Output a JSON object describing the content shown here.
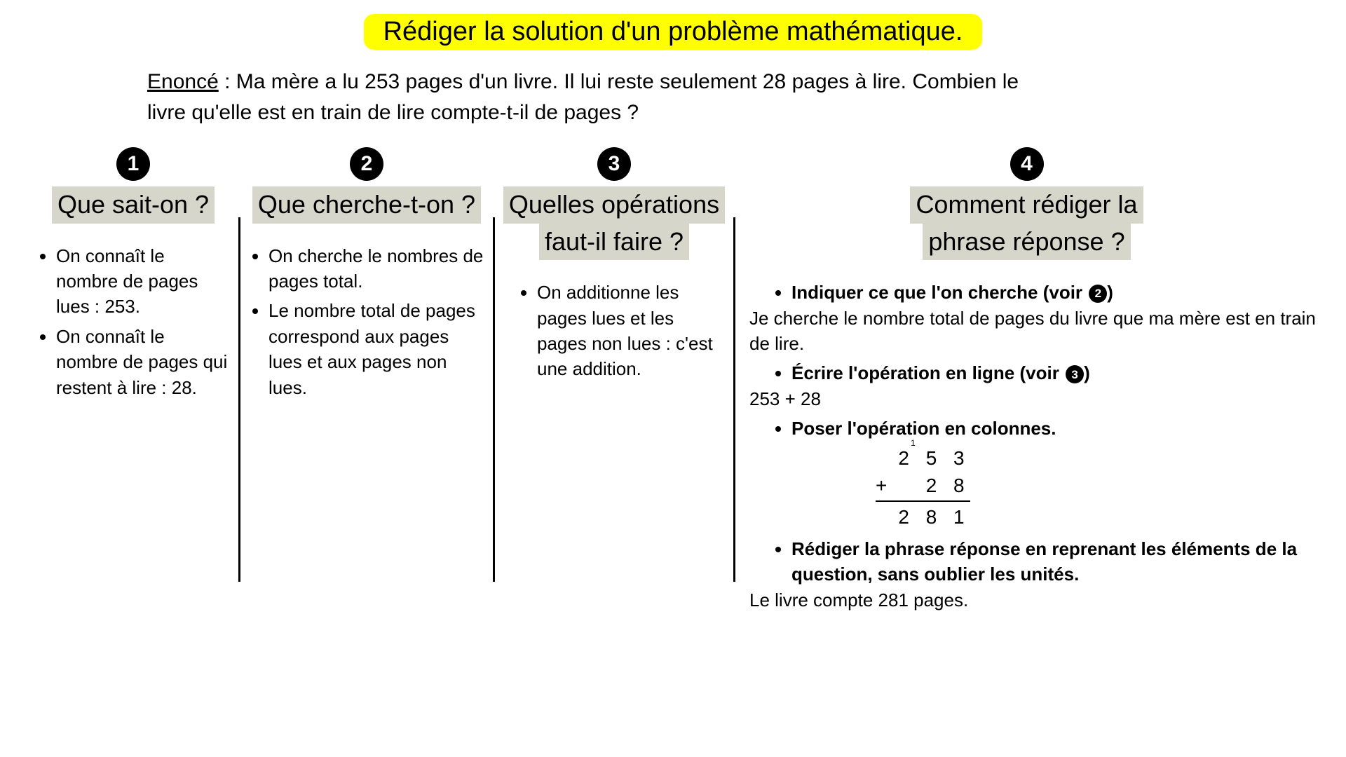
{
  "title": "Rédiger la solution d'un problème mathématique.",
  "enonce_label": "Enoncé",
  "enonce_text": " : Ma mère a lu 253 pages d'un livre. Il lui reste seulement 28 pages à lire. Combien le livre qu'elle est en train de lire compte-t-il de pages ?",
  "colors": {
    "highlight": "#ffff00",
    "col_title_bg": "#d6d6cb",
    "text": "#000000",
    "background": "#ffffff"
  },
  "columns": [
    {
      "num": "1",
      "title": "Que sait-on ?",
      "items": [
        "On connaît le nombre de pages lues : 253.",
        "On connaît le nombre de pages qui restent à lire : 28."
      ]
    },
    {
      "num": "2",
      "title": "Que cherche-t-on ?",
      "items": [
        "On cherche le nombres de pages total.",
        "Le nombre total de pages correspond aux pages lues et aux pages non lues."
      ]
    },
    {
      "num": "3",
      "title_line1": "Quelles opérations",
      "title_line2": "faut-il faire ?",
      "items": [
        "On additionne les pages lues et les pages non lues : c'est une addition."
      ]
    },
    {
      "num": "4",
      "title_line1": "Comment rédiger la",
      "title_line2": "phrase réponse ?",
      "steps": {
        "a_label": "Indiquer ce que l'on cherche (voir",
        "a_ref": "2",
        "a_close": ")",
        "a_text": "Je cherche le nombre total de pages du livre que ma mère est en train de lire.",
        "b_label": "Écrire l'opération en ligne (voir",
        "b_ref": "3",
        "b_close": ")",
        "b_text": "253 + 28",
        "c_label": "Poser l'opération en colonnes.",
        "calc": {
          "carry": "1",
          "row1": "2 5 3",
          "row2": "+   2 8",
          "sum": "2 8 1"
        },
        "d_label": "Rédiger la phrase réponse en reprenant les éléments de la question, sans oublier les unités.",
        "d_text": "Le livre compte 281 pages."
      }
    }
  ]
}
